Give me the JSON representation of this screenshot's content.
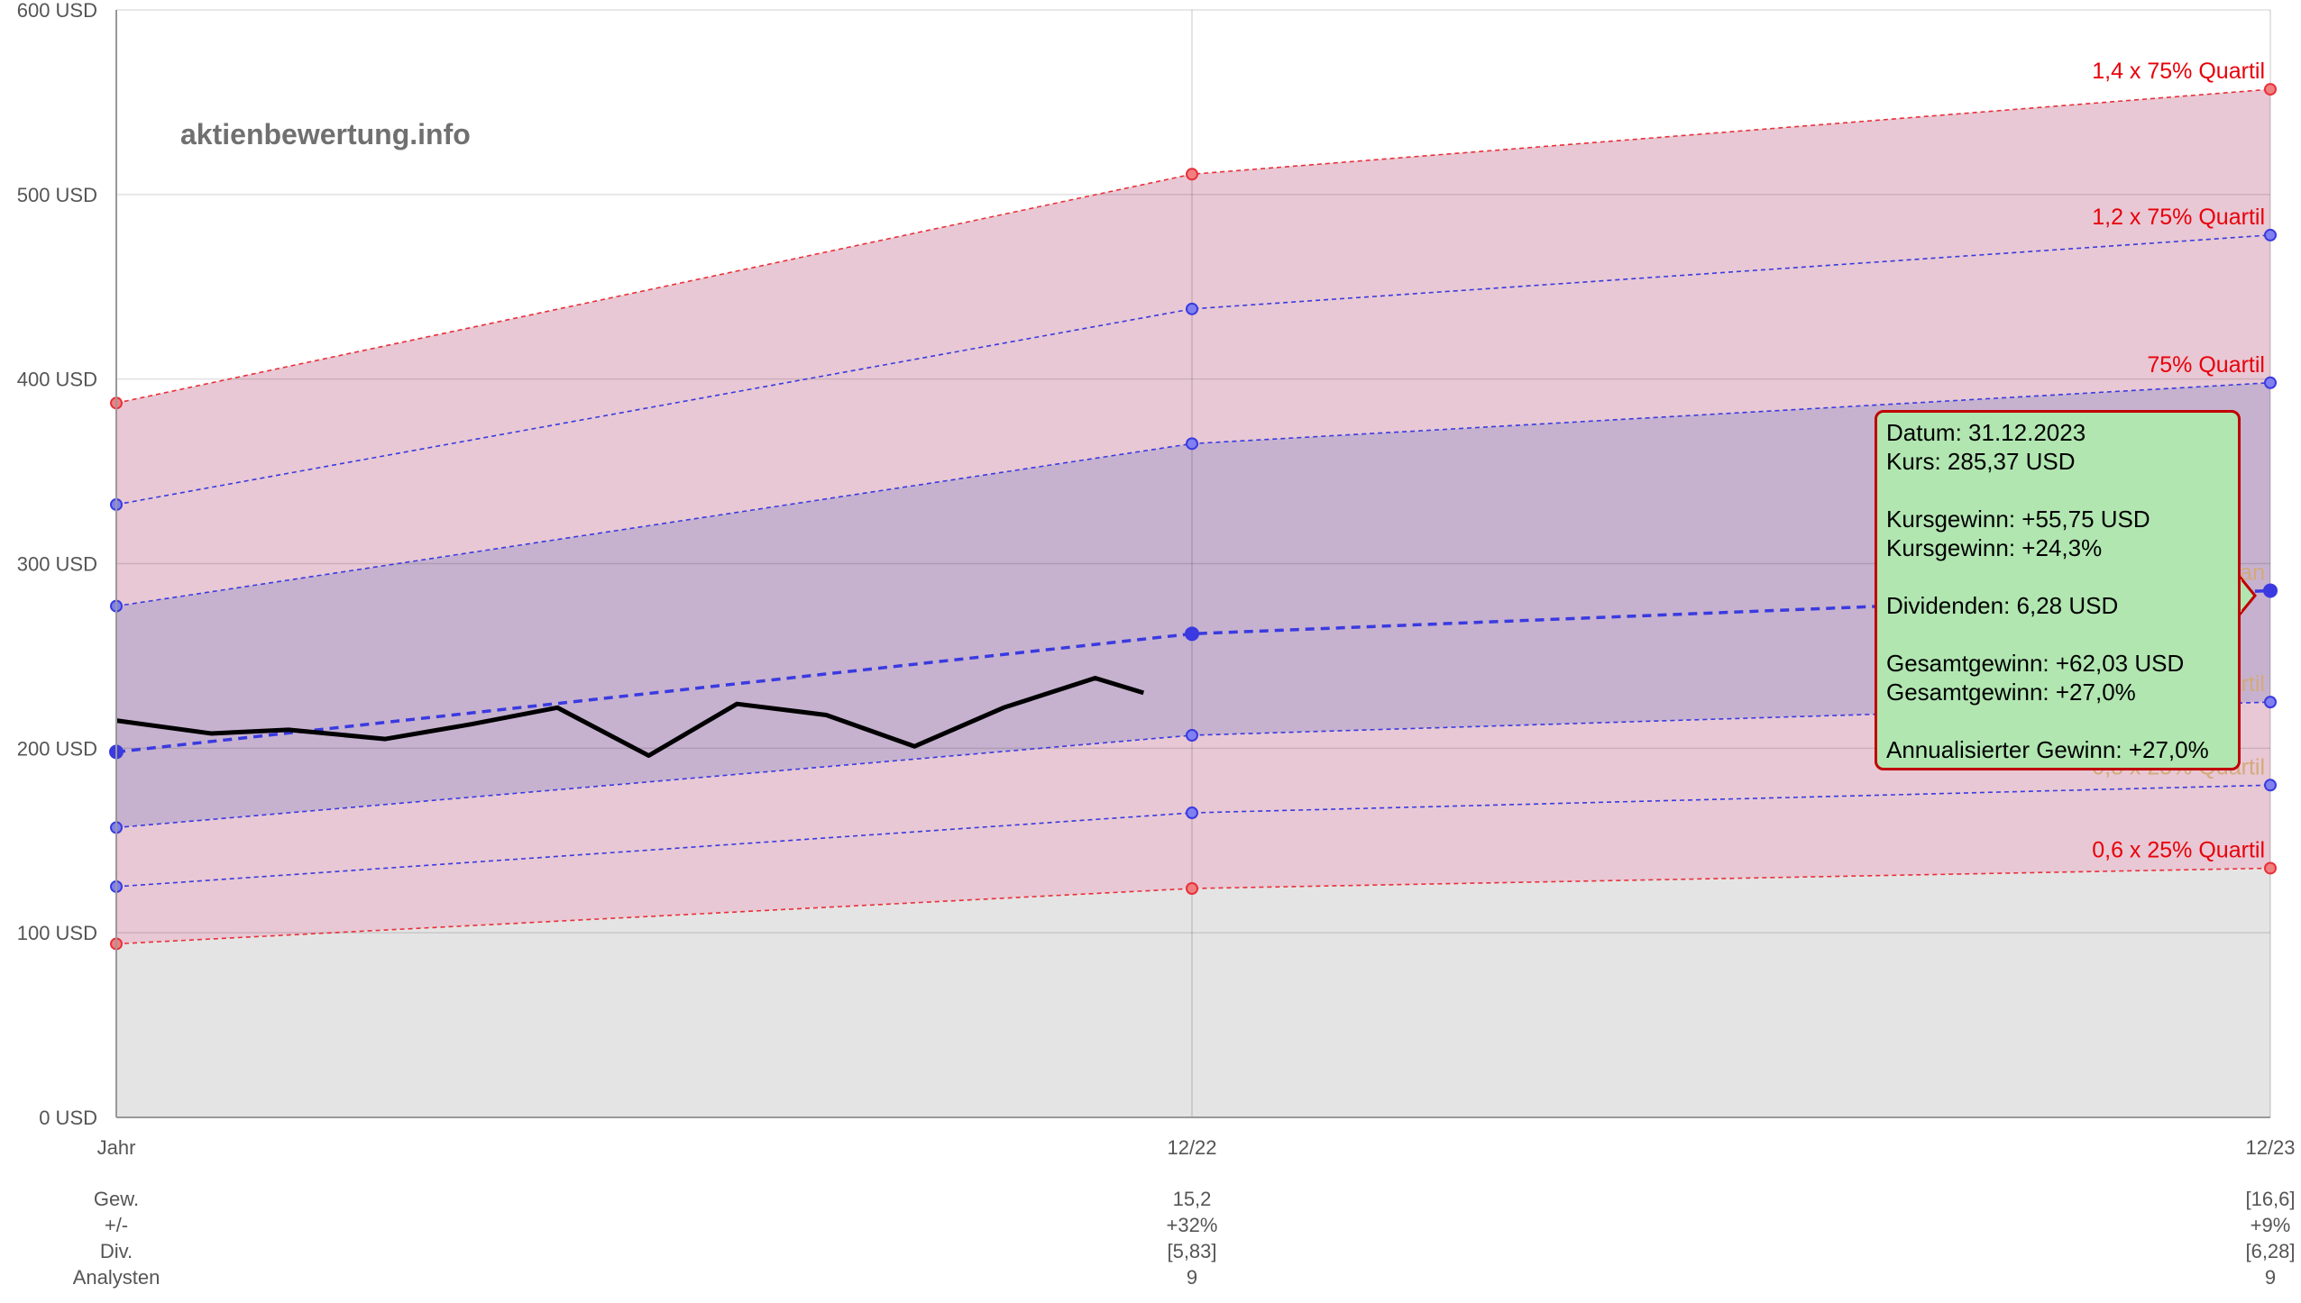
{
  "watermark": "aktienbewertung.info",
  "colors": {
    "red": "#e8303a",
    "blue": "#3a3ae0",
    "band_outer_fill": "#e8c8d4",
    "band_inner_fill": "#c6b2cf",
    "bottom_fill": "#e4e4e4",
    "median_label": "#d4a97a",
    "tooltip_bg": "#b1e6b1",
    "tooltip_border": "#c00000"
  },
  "chart_data": {
    "type": "line",
    "y_axis": {
      "min": 0,
      "max": 600,
      "unit": "USD",
      "ticks": [
        0,
        100,
        200,
        300,
        400,
        500,
        600
      ],
      "tick_labels": [
        "0 USD",
        "100 USD",
        "200 USD",
        "300 USD",
        "400 USD",
        "500 USD",
        "600 USD"
      ]
    },
    "x_axis": {
      "categories": [
        "Jahr",
        "12/22",
        "12/23"
      ],
      "grid": true
    },
    "bands": [
      {
        "name": "1,4 x 75% Quartil",
        "color": "#e8303a",
        "values": [
          387,
          511,
          557
        ]
      },
      {
        "name": "1,2 x 75% Quartil",
        "color": "#3a3ae0",
        "values": [
          332,
          438,
          478
        ]
      },
      {
        "name": "75% Quartil",
        "color": "#3a3ae0",
        "values": [
          277,
          365,
          398
        ]
      },
      {
        "name": "Median",
        "color": "#3a3ae0",
        "values": [
          198,
          262,
          285.37
        ]
      },
      {
        "name": "25% Quartil",
        "color": "#3a3ae0",
        "values": [
          157,
          207,
          225
        ]
      },
      {
        "name": "0,8 x 25% Quartil",
        "color": "#3a3ae0",
        "values": [
          125,
          165,
          180
        ]
      },
      {
        "name": "0,6 x 25% Quartil",
        "color": "#e8303a",
        "values": [
          94,
          124,
          135
        ]
      }
    ],
    "price_series": {
      "x": [
        0,
        0.088,
        0.16,
        0.25,
        0.33,
        0.41,
        0.495,
        0.577,
        0.66,
        0.742,
        0.825,
        0.91,
        0.955
      ],
      "y": [
        215,
        208,
        210,
        205,
        213,
        222,
        196,
        224,
        218,
        201,
        222,
        238,
        230
      ]
    },
    "table": {
      "row_labels": [
        "Gew.",
        "+/-",
        "Div.",
        "Analysten"
      ],
      "columns": [
        {
          "values": [
            "15,2",
            "+32%",
            "[5,83]",
            "9"
          ]
        },
        {
          "values": [
            "[16,6]",
            "+9%",
            "[6,28]",
            "9"
          ]
        }
      ]
    }
  },
  "tooltip": {
    "lines": [
      "Datum: 31.12.2023",
      "Kurs: 285,37 USD",
      "",
      "Kursgewinn: +55,75 USD",
      "Kursgewinn: +24,3%",
      "",
      "Dividenden: 6,28 USD",
      "",
      "Gesamtgewinn: +62,03 USD",
      "Gesamtgewinn: +27,0%",
      "",
      "Annualisierter Gewinn: +27,0%"
    ]
  }
}
